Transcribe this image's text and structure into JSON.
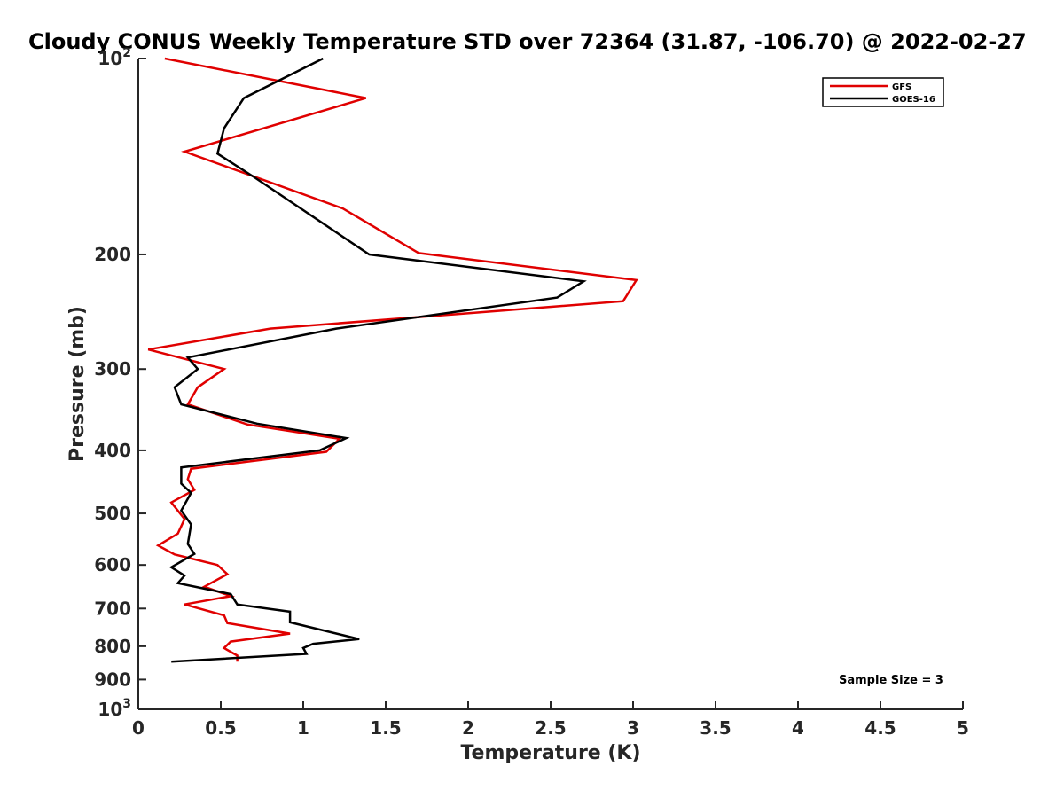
{
  "chart_data": {
    "type": "line",
    "title": "Cloudy CONUS Weekly Temperature STD over 72364 (31.87, -106.70) @ 2022-02-27",
    "xlabel": "Temperature (K)",
    "ylabel": "Pressure (mb)",
    "xlim": [
      0,
      5
    ],
    "ylim": [
      100,
      1000
    ],
    "y_scale": "log",
    "y_reversed": true,
    "x_ticks": [
      "0",
      "0.5",
      "1",
      "1.5",
      "2",
      "2.5",
      "3",
      "3.5",
      "4",
      "4.5",
      "5"
    ],
    "y_ticks": [
      {
        "value": 100,
        "base": "10",
        "exp": "2"
      },
      {
        "value": 200,
        "label": "200"
      },
      {
        "value": 300,
        "label": "300"
      },
      {
        "value": 400,
        "label": "400"
      },
      {
        "value": 500,
        "label": "500"
      },
      {
        "value": 600,
        "label": "600"
      },
      {
        "value": 700,
        "label": "700"
      },
      {
        "value": 800,
        "label": "800"
      },
      {
        "value": 900,
        "label": "900"
      },
      {
        "value": 1000,
        "base": "10",
        "exp": "3"
      }
    ],
    "legend_position": "top-right",
    "grid": false,
    "series": [
      {
        "name": "GFS",
        "color": "#e00000",
        "points": [
          [
            0.16,
            100
          ],
          [
            1.38,
            115
          ],
          [
            0.28,
            139
          ],
          [
            1.24,
            170
          ],
          [
            1.7,
            199
          ],
          [
            3.02,
            219
          ],
          [
            2.94,
            236
          ],
          [
            0.8,
            260
          ],
          [
            0.06,
            280
          ],
          [
            0.52,
            300
          ],
          [
            0.36,
            320
          ],
          [
            0.3,
            340
          ],
          [
            0.66,
            365
          ],
          [
            1.22,
            384
          ],
          [
            1.14,
            402
          ],
          [
            0.32,
            427
          ],
          [
            0.3,
            443
          ],
          [
            0.34,
            460
          ],
          [
            0.2,
            481
          ],
          [
            0.28,
            510
          ],
          [
            0.24,
            537
          ],
          [
            0.12,
            560
          ],
          [
            0.22,
            578
          ],
          [
            0.48,
            600
          ],
          [
            0.54,
            620
          ],
          [
            0.4,
            648
          ],
          [
            0.56,
            670
          ],
          [
            0.28,
            690
          ],
          [
            0.52,
            717
          ],
          [
            0.54,
            737
          ],
          [
            0.92,
            765
          ],
          [
            0.56,
            787
          ],
          [
            0.52,
            805
          ],
          [
            0.6,
            827
          ],
          [
            0.6,
            845
          ]
        ]
      },
      {
        "name": "GOES-16",
        "color": "#000000",
        "points": [
          [
            1.12,
            100
          ],
          [
            0.64,
            115
          ],
          [
            0.52,
            128
          ],
          [
            0.48,
            140
          ],
          [
            0.7,
            152
          ],
          [
            1.4,
            200
          ],
          [
            2.7,
            220
          ],
          [
            2.54,
            233
          ],
          [
            1.2,
            260
          ],
          [
            0.3,
            288
          ],
          [
            0.36,
            300
          ],
          [
            0.22,
            320
          ],
          [
            0.26,
            340
          ],
          [
            0.72,
            364
          ],
          [
            1.26,
            383
          ],
          [
            1.1,
            400
          ],
          [
            0.26,
            425
          ],
          [
            0.26,
            450
          ],
          [
            0.32,
            465
          ],
          [
            0.26,
            495
          ],
          [
            0.32,
            520
          ],
          [
            0.3,
            557
          ],
          [
            0.34,
            577
          ],
          [
            0.2,
            605
          ],
          [
            0.28,
            623
          ],
          [
            0.24,
            640
          ],
          [
            0.56,
            665
          ],
          [
            0.6,
            690
          ],
          [
            0.92,
            708
          ],
          [
            0.92,
            735
          ],
          [
            1.34,
            780
          ],
          [
            1.06,
            793
          ],
          [
            1.0,
            805
          ],
          [
            1.02,
            822
          ],
          [
            0.2,
            845
          ]
        ]
      }
    ],
    "annotation": "Sample Size = 3"
  }
}
